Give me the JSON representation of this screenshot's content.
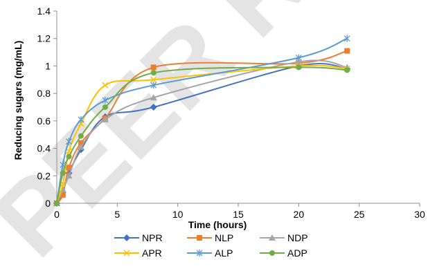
{
  "watermark": "PEER REVIEW",
  "chart_data": {
    "type": "line",
    "title": "",
    "xlabel": "Time (hours)",
    "ylabel": "Reducing sugars (mg/mL)",
    "xlim": [
      0,
      30
    ],
    "ylim": [
      0,
      1.4
    ],
    "x_ticks": [
      0,
      5,
      10,
      15,
      20,
      25,
      30
    ],
    "y_ticks": [
      0,
      0.2,
      0.4,
      0.6,
      0.8,
      1,
      1.2,
      1.4
    ],
    "y_tick_labels": [
      "0",
      "0.2",
      "0.4",
      "0.6",
      "0.8",
      "1",
      "1.2",
      "1.4"
    ],
    "grid": false,
    "legend_position": "bottom",
    "x": [
      0,
      0.5,
      1,
      2,
      4,
      8,
      20,
      24
    ],
    "series": [
      {
        "name": "NPR",
        "color": "#4472c4",
        "marker": "diamond",
        "values": [
          0,
          0.08,
          0.22,
          0.39,
          0.63,
          0.7,
          1.0,
          0.98
        ]
      },
      {
        "name": "NLP",
        "color": "#ed7d31",
        "marker": "square",
        "values": [
          0,
          0.06,
          0.26,
          0.44,
          0.62,
          0.99,
          1.02,
          1.11
        ]
      },
      {
        "name": "NDP",
        "color": "#a5a5a5",
        "marker": "triangle",
        "values": [
          0,
          0.1,
          0.2,
          0.41,
          0.61,
          0.77,
          1.03,
          0.99
        ]
      },
      {
        "name": "APR",
        "color": "#ffc000",
        "marker": "x",
        "values": [
          0,
          0.14,
          0.38,
          0.58,
          0.86,
          0.9,
          1.0,
          0.98
        ]
      },
      {
        "name": "ALP",
        "color": "#5b9bd5",
        "marker": "star",
        "values": [
          0,
          0.28,
          0.45,
          0.61,
          0.75,
          0.86,
          1.06,
          1.2
        ]
      },
      {
        "name": "ADP",
        "color": "#70ad47",
        "marker": "circle",
        "values": [
          0,
          0.22,
          0.34,
          0.49,
          0.7,
          0.95,
          0.99,
          0.97
        ]
      }
    ]
  }
}
